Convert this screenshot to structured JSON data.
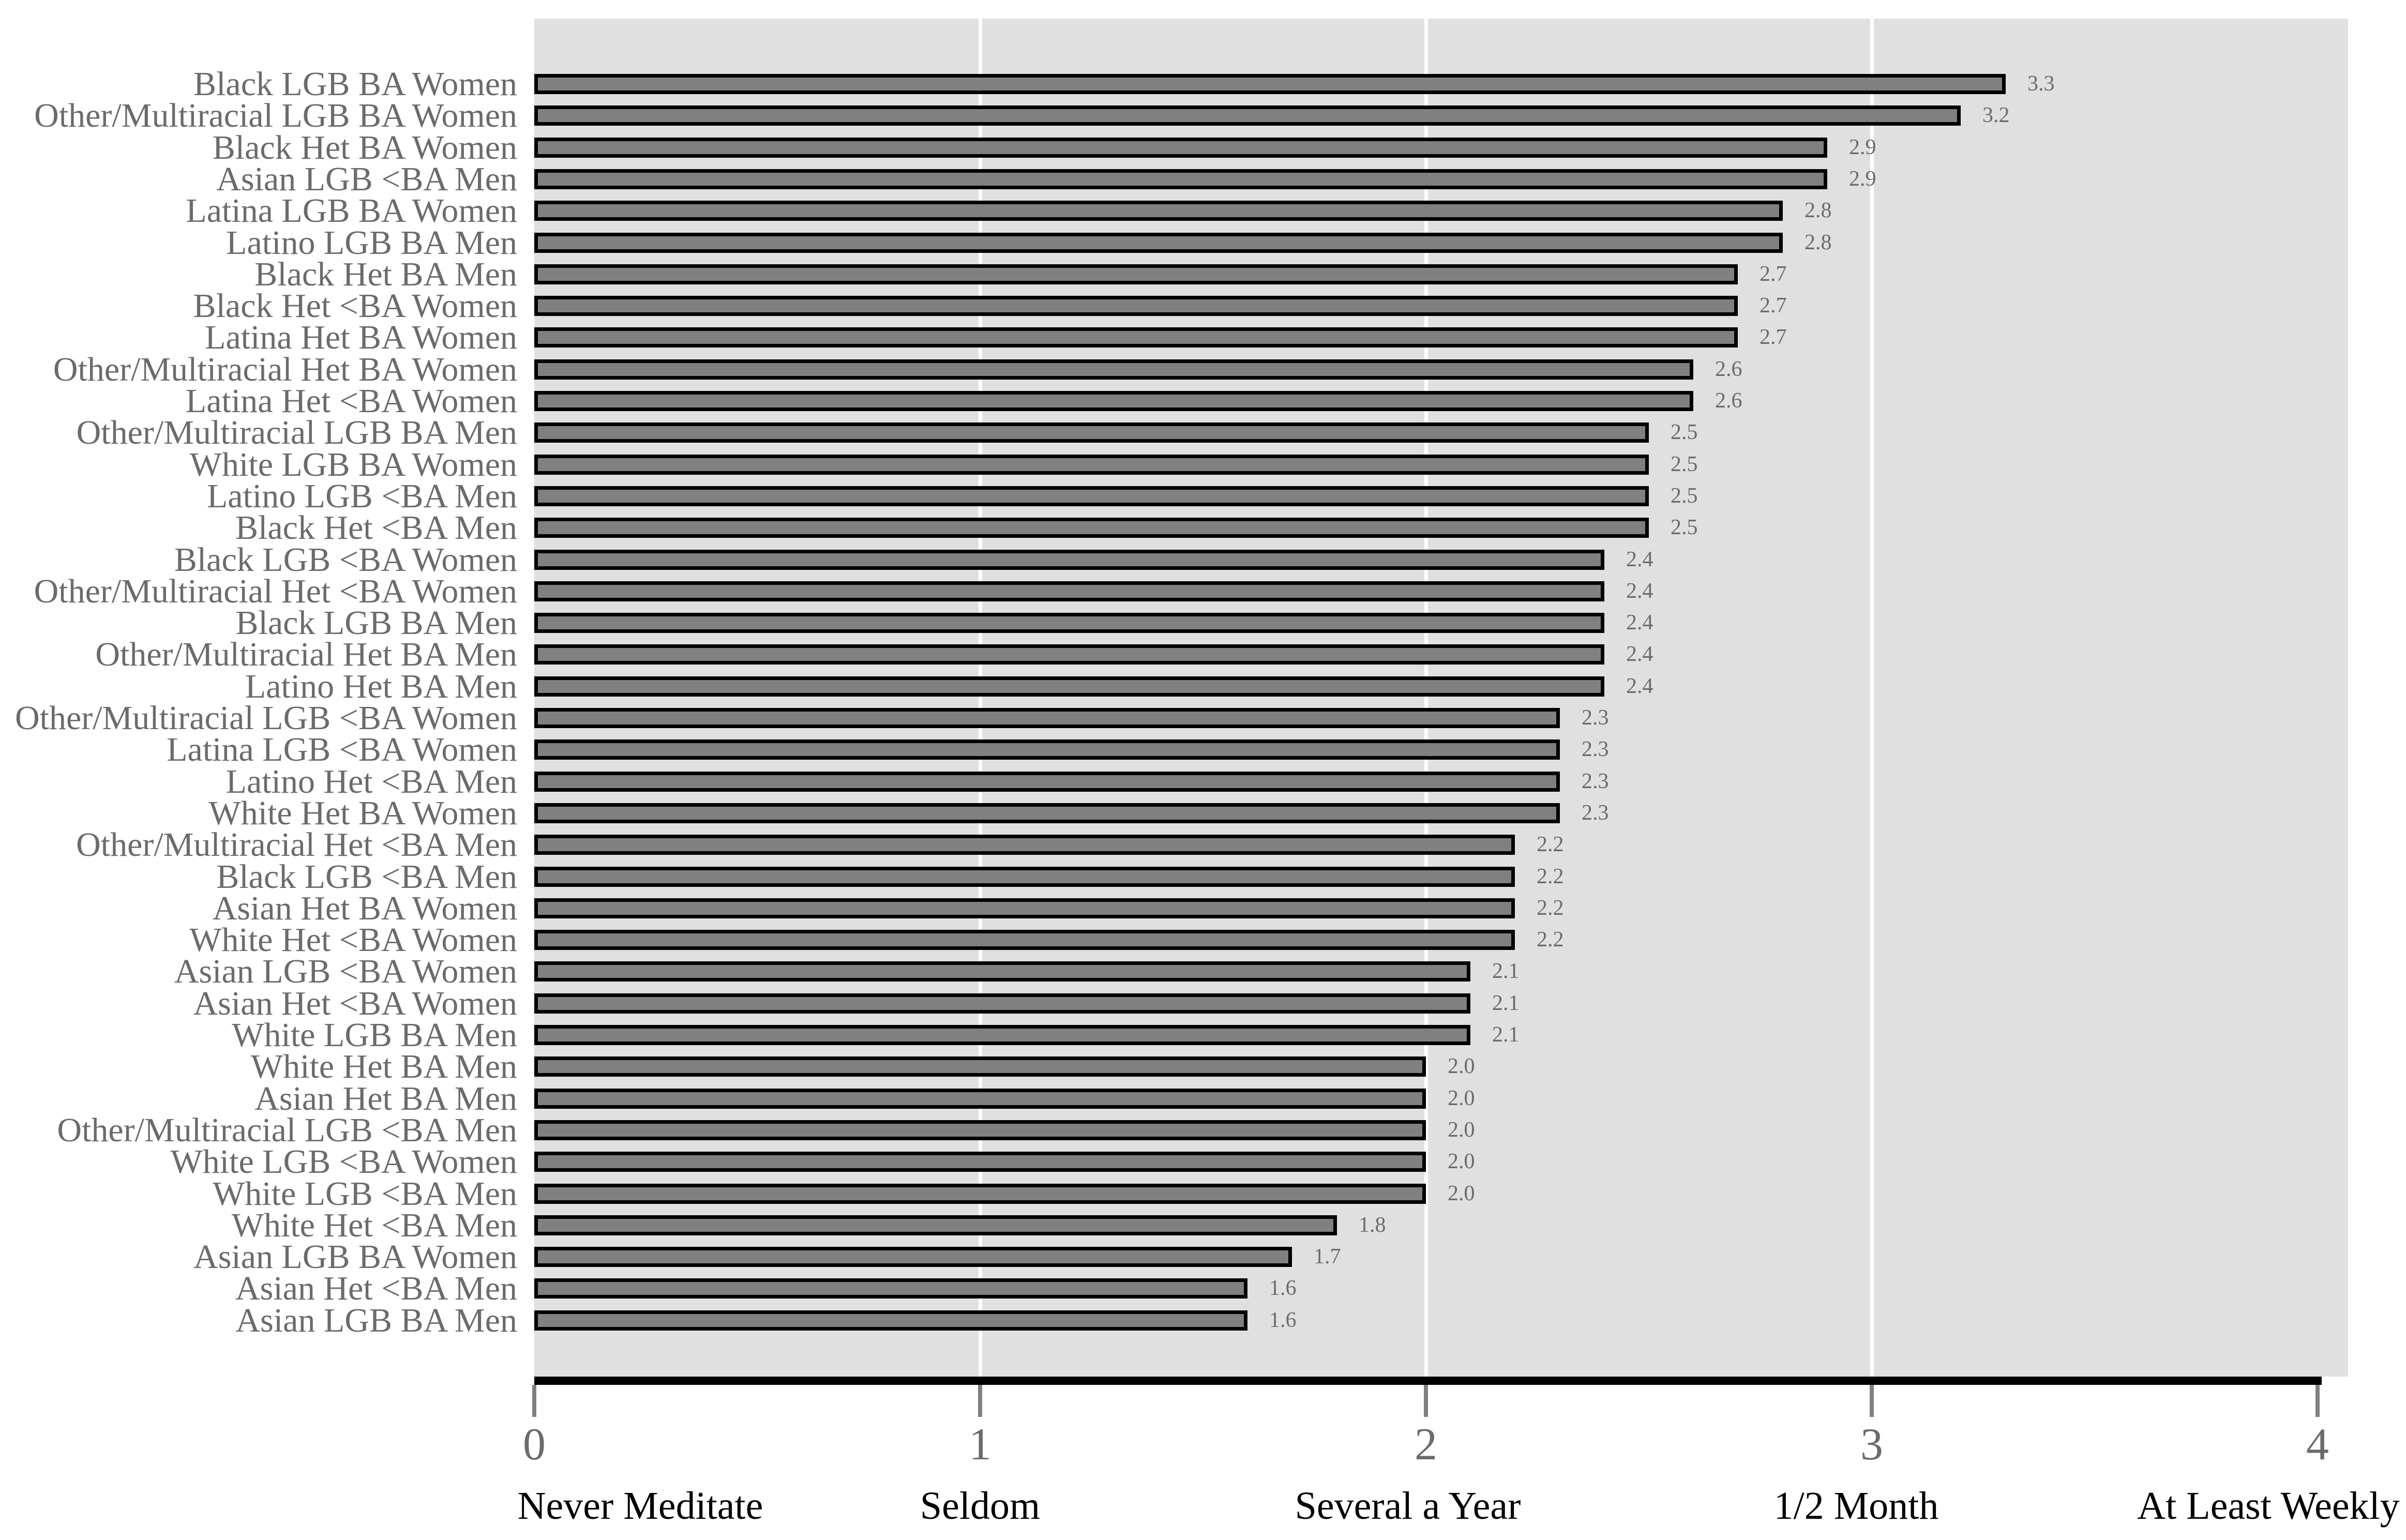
{
  "chart_data": {
    "type": "bar",
    "orientation": "horizontal",
    "title": "",
    "xlabel": "",
    "ylabel": "",
    "grid": "vertical white gridlines at x=1,2,3",
    "legend": "none",
    "xlim": [
      0,
      4
    ],
    "categories": [
      "Black LGB BA Women",
      "Other/Multiracial LGB BA Women",
      "Black Het BA Women",
      "Asian LGB <BA Men",
      "Latina LGB BA Women",
      "Latino LGB BA Men",
      "Black Het BA Men",
      "Black Het <BA Women",
      "Latina Het BA Women",
      "Other/Multiracial Het BA Women",
      "Latina Het <BA Women",
      "Other/Multiracial LGB BA Men",
      "White LGB BA Women",
      "Latino LGB <BA Men",
      "Black Het <BA Men",
      "Black LGB <BA Women",
      "Other/Multiracial Het <BA Women",
      "Black LGB BA Men",
      "Other/Multiracial Het BA Men",
      "Latino Het BA Men",
      "Other/Multiracial LGB <BA Women",
      "Latina LGB <BA Women",
      "Latino Het <BA Men",
      "White Het BA Women",
      "Other/Multiracial Het <BA Men",
      "Black LGB <BA Men",
      "Asian Het BA Women",
      "White Het <BA Women",
      "Asian LGB <BA Women",
      "Asian Het <BA Women",
      "White LGB BA Men",
      "White Het BA Men",
      "Asian Het BA Men",
      "Other/Multiracial LGB <BA Men",
      "White LGB <BA Women",
      "White LGB <BA Men",
      "White Het <BA Men",
      "Asian LGB BA Women",
      "Asian Het <BA Men",
      "Asian LGB BA Men"
    ],
    "values": [
      3.3,
      3.2,
      2.9,
      2.9,
      2.8,
      2.8,
      2.7,
      2.7,
      2.7,
      2.6,
      2.6,
      2.5,
      2.5,
      2.5,
      2.5,
      2.4,
      2.4,
      2.4,
      2.4,
      2.4,
      2.3,
      2.3,
      2.3,
      2.3,
      2.2,
      2.2,
      2.2,
      2.2,
      2.1,
      2.1,
      2.1,
      2.0,
      2.0,
      2.0,
      2.0,
      2.0,
      1.8,
      1.7,
      1.6,
      1.6
    ],
    "x_axis": {
      "ticks": [
        {
          "value": 0,
          "label": "0",
          "desc": "Never Meditate"
        },
        {
          "value": 1,
          "label": "1",
          "desc": "Seldom"
        },
        {
          "value": 2,
          "label": "2",
          "desc": "Several a Year"
        },
        {
          "value": 3,
          "label": "3",
          "desc": "1/2 Month"
        },
        {
          "value": 4,
          "label": "4",
          "desc": "At Least Weekly"
        }
      ]
    },
    "colors": {
      "plot_background": "#e0e0e0",
      "bar_fill": "#808080",
      "bar_border": "#000000",
      "gridline": "#ffffff",
      "axis_line": "#000000",
      "gray_text": "#6b6b6b",
      "axis_label_text": "#000000"
    }
  }
}
